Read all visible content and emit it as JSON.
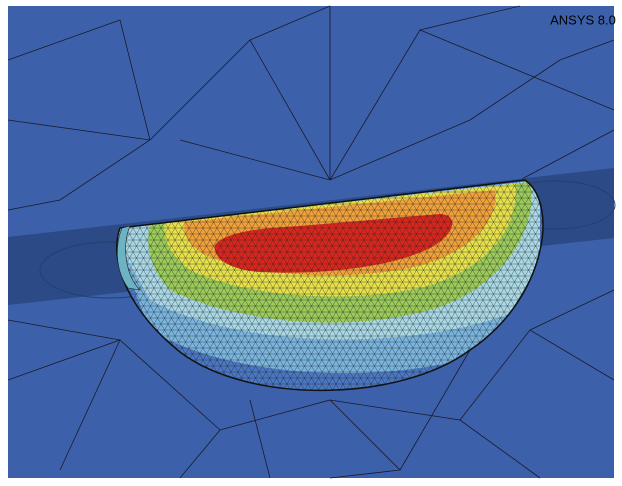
{
  "label": "ANSYS 8.0"
}
